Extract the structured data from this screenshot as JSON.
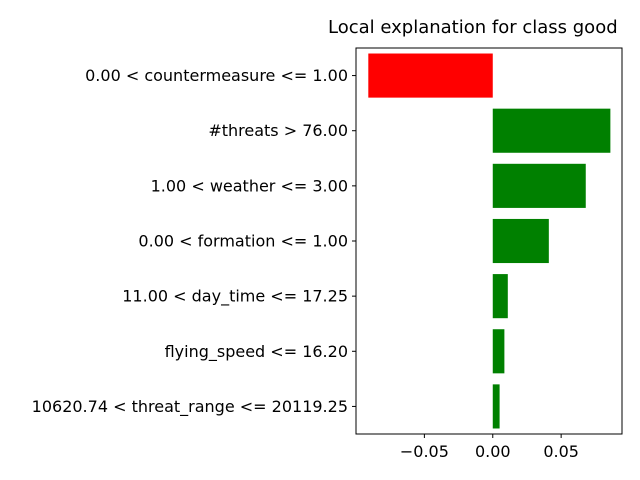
{
  "chart_data": {
    "type": "bar",
    "orientation": "horizontal",
    "title": "Local explanation for class good",
    "xlabel": "",
    "ylabel": "",
    "categories": [
      "0.00 < countermeasure <= 1.00",
      "#threats > 76.00",
      "1.00 < weather <= 3.00",
      "0.00 < formation <= 1.00",
      "11.00 < day_time <= 17.25",
      "flying_speed <= 16.20",
      "10620.74 < threat_range <= 20119.25"
    ],
    "values": [
      -0.091,
      0.086,
      0.068,
      0.041,
      0.011,
      0.0085,
      0.005
    ],
    "colors": [
      "#ff0000",
      "#008000",
      "#008000",
      "#008000",
      "#008000",
      "#008000",
      "#008000"
    ],
    "xlim": [
      -0.1,
      0.0945
    ],
    "xticks": [
      -0.05,
      0.0,
      0.05
    ],
    "xtick_labels": [
      "−0.05",
      "0.00",
      "0.05"
    ],
    "grid": false,
    "legend": "none"
  }
}
